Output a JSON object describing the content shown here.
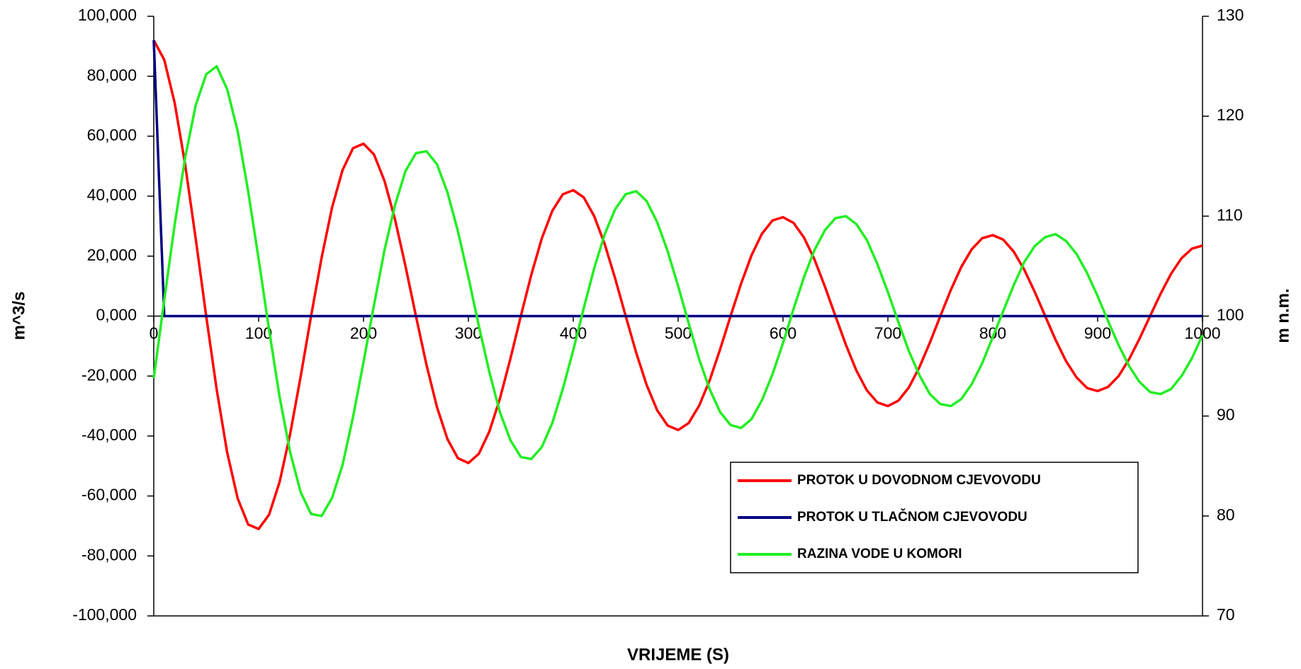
{
  "chart_data": {
    "type": "line",
    "x_label": "VRIJEME (S)",
    "y_label": "m^3/s",
    "y2_label": "m n.m.",
    "x": [
      0,
      10,
      20,
      30,
      40,
      50,
      60,
      70,
      80,
      90,
      100,
      110,
      120,
      130,
      140,
      150,
      160,
      170,
      180,
      190,
      200,
      210,
      220,
      230,
      240,
      250,
      260,
      270,
      280,
      290,
      300,
      310,
      320,
      330,
      340,
      350,
      360,
      370,
      380,
      390,
      400,
      410,
      420,
      430,
      440,
      450,
      460,
      470,
      480,
      490,
      500,
      510,
      520,
      530,
      540,
      550,
      560,
      570,
      580,
      590,
      600,
      610,
      620,
      630,
      640,
      650,
      660,
      670,
      680,
      690,
      700,
      710,
      720,
      730,
      740,
      750,
      760,
      770,
      780,
      790,
      800,
      810,
      820,
      830,
      840,
      850,
      860,
      870,
      880,
      890,
      900,
      910,
      920,
      930,
      940,
      950,
      960,
      970,
      980,
      990,
      1000
    ],
    "series": [
      {
        "name": "PROTOK U DOVODNOM CJEVOVODU",
        "color": "#ff0000",
        "axis": "y",
        "values": [
          92,
          85.5,
          71.0,
          50.4,
          25.8,
          0,
          -24.5,
          -45.5,
          -60.8,
          -69.5,
          -71,
          -66.2,
          -55.3,
          -39.4,
          -20.3,
          0,
          19.4,
          36.2,
          48.7,
          56.0,
          57.5,
          53.9,
          45.1,
          32.3,
          16.7,
          0,
          -16.2,
          -30.3,
          -41.0,
          -47.4,
          -49,
          -45.9,
          -38.5,
          -27.6,
          -14.3,
          0,
          13.8,
          25.9,
          35.1,
          40.6,
          42,
          39.6,
          33.3,
          24.0,
          12.5,
          0,
          -12.2,
          -23.0,
          -31.4,
          -36.5,
          -38,
          -35.7,
          -29.9,
          -21.5,
          -11.1,
          0,
          10.8,
          20.3,
          27.5,
          31.9,
          33,
          31.1,
          26.2,
          18.9,
          9.8,
          0,
          -9.6,
          -18.2,
          -24.8,
          -28.8,
          -30,
          -28.2,
          -23.8,
          -17.1,
          -8.9,
          0,
          8.7,
          16.4,
          22.3,
          26.0,
          27,
          25.5,
          21.5,
          15.5,
          8.1,
          0,
          -8.0,
          -15.1,
          -20.5,
          -24.0,
          -25,
          -23.6,
          -20.0,
          -14.4,
          -7.5,
          0,
          7.4,
          14.1,
          19.3,
          22.5,
          23.5
        ]
      },
      {
        "name": "PROTOK U TLAČNOM CJEVOVODU",
        "color": "#000080",
        "axis": "y",
        "values": [
          92,
          0,
          0,
          0,
          0,
          0,
          0,
          0,
          0,
          0,
          0,
          0,
          0,
          0,
          0,
          0,
          0,
          0,
          0,
          0,
          0,
          0,
          0,
          0,
          0,
          0,
          0,
          0,
          0,
          0,
          0,
          0,
          0,
          0,
          0,
          0,
          0,
          0,
          0,
          0,
          0,
          0,
          0,
          0,
          0,
          0,
          0,
          0,
          0,
          0,
          0,
          0,
          0,
          0,
          0,
          0,
          0,
          0,
          0,
          0,
          0,
          0,
          0,
          0,
          0,
          0,
          0,
          0,
          0,
          0,
          0,
          0,
          0,
          0,
          0,
          0,
          0,
          0,
          0,
          0,
          0,
          0,
          0,
          0,
          0,
          0,
          0,
          0,
          0,
          0,
          0,
          0,
          0,
          0,
          0,
          0,
          0,
          0,
          0,
          0,
          0
        ]
      },
      {
        "name": "RAZINA VODE U KOMORI",
        "color": "#22ee22",
        "axis": "y2",
        "values": [
          93.8,
          101.6,
          109.2,
          115.9,
          121.1,
          124.2,
          125.0,
          122.7,
          118.5,
          112.5,
          105.7,
          98.6,
          91.9,
          86.4,
          82.4,
          80.2,
          80.0,
          81.8,
          85.1,
          89.9,
          95.4,
          101.1,
          106.6,
          111.1,
          114.5,
          116.3,
          116.5,
          115.2,
          112.4,
          108.5,
          103.9,
          99.0,
          94.4,
          90.4,
          87.6,
          85.9,
          85.7,
          86.9,
          89.3,
          92.7,
          96.6,
          100.8,
          104.8,
          108.2,
          110.7,
          112.2,
          112.5,
          111.5,
          109.4,
          106.5,
          103.0,
          99.3,
          95.7,
          92.7,
          90.4,
          89.1,
          88.8,
          89.7,
          91.6,
          94.2,
          97.3,
          100.7,
          103.9,
          106.6,
          108.6,
          109.8,
          110.0,
          109.2,
          107.6,
          105.2,
          102.4,
          99.4,
          96.5,
          94.1,
          92.2,
          91.2,
          91.0,
          91.7,
          93.2,
          95.3,
          97.9,
          100.5,
          103.1,
          105.4,
          107.0,
          107.9,
          108.2,
          107.5,
          106.2,
          104.3,
          102.0,
          99.5,
          97.1,
          95.0,
          93.4,
          92.4,
          92.2,
          92.7,
          94.0,
          95.8,
          98.1
        ]
      }
    ],
    "xlim": [
      0,
      1000
    ],
    "xticks": [
      0,
      100,
      200,
      300,
      400,
      500,
      600,
      700,
      800,
      900,
      1000
    ],
    "ylim": [
      -100,
      100
    ],
    "yticks": [
      {
        "value": -100,
        "label": "-100,000"
      },
      {
        "value": -80,
        "label": "-80,000"
      },
      {
        "value": -60,
        "label": "-60,000"
      },
      {
        "value": -40,
        "label": "-40,000"
      },
      {
        "value": -20,
        "label": "-20,000"
      },
      {
        "value": 0,
        "label": "0,000"
      },
      {
        "value": 20,
        "label": "20,000"
      },
      {
        "value": 40,
        "label": "40,000"
      },
      {
        "value": 60,
        "label": "60,000"
      },
      {
        "value": 80,
        "label": "80,000"
      },
      {
        "value": 100,
        "label": "100,000"
      }
    ],
    "y2lim": [
      70,
      130
    ],
    "y2ticks": [
      70,
      80,
      90,
      100,
      110,
      120,
      130
    ],
    "legend_position": "lower right"
  }
}
